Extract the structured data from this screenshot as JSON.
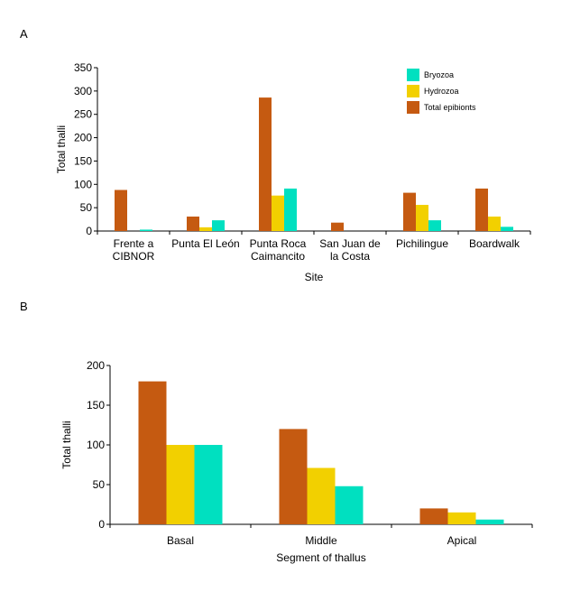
{
  "colors": {
    "total": "#C55A11",
    "hydrozoa": "#F2D000",
    "bryozoa": "#00E0C0"
  },
  "chart_data": [
    {
      "panel": "A",
      "type": "bar",
      "xlabel": "Site",
      "ylabel": "Total thalli",
      "ylim": [
        0,
        350
      ],
      "yticks": [
        0,
        50,
        100,
        150,
        200,
        250,
        300,
        350
      ],
      "categories": [
        [
          "Frente a",
          "CIBNOR"
        ],
        [
          "Punta El León"
        ],
        [
          "Punta Roca",
          "Caimancito"
        ],
        [
          "San Juan de",
          "la Costa"
        ],
        [
          "Pichilingue"
        ],
        [
          "Boardwalk"
        ]
      ],
      "series": [
        {
          "name": "Total epibionts",
          "key": "total",
          "values": [
            88,
            31,
            286,
            18,
            82,
            91
          ]
        },
        {
          "name": "Hydrozoa",
          "key": "hydrozoa",
          "values": [
            0,
            8,
            76,
            0,
            56,
            31
          ]
        },
        {
          "name": "Bryozoa",
          "key": "bryozoa",
          "values": [
            3,
            23,
            91,
            0,
            23,
            9
          ]
        }
      ],
      "legend": {
        "placement": "top-right",
        "order": [
          "Bryozoa",
          "Hydrozoa",
          "Total epibionts"
        ]
      }
    },
    {
      "panel": "B",
      "type": "bar",
      "xlabel": "Segment of thallus",
      "ylabel": "Total thalli",
      "ylim": [
        0,
        200
      ],
      "yticks": [
        0,
        50,
        100,
        150,
        200
      ],
      "categories": [
        [
          "Basal"
        ],
        [
          "Middle"
        ],
        [
          "Apical"
        ]
      ],
      "series": [
        {
          "key": "total",
          "values": [
            180,
            120,
            20
          ]
        },
        {
          "key": "hydrozoa",
          "values": [
            100,
            71,
            15
          ]
        },
        {
          "key": "bryozoa",
          "values": [
            100,
            48,
            6
          ]
        }
      ]
    }
  ]
}
